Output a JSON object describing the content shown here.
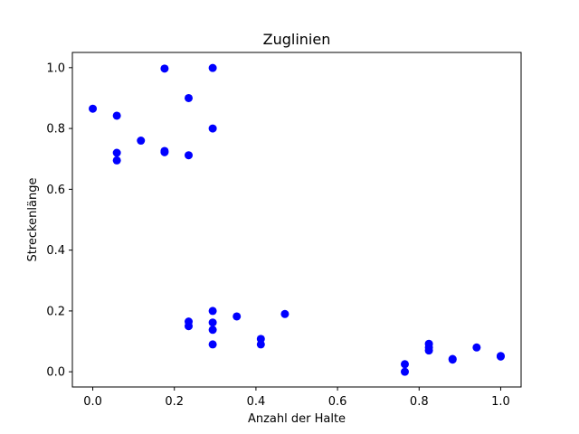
{
  "chart_data": {
    "type": "scatter",
    "title": "Zuglinien",
    "xlabel": "Anzahl der Halte",
    "ylabel": "Streckenlänge",
    "xlim": [
      -0.05,
      1.05
    ],
    "ylim": [
      -0.05,
      1.05
    ],
    "xticks": [
      0.0,
      0.2,
      0.4,
      0.6,
      0.8,
      1.0
    ],
    "yticks": [
      0.0,
      0.2,
      0.4,
      0.6,
      0.8,
      1.0
    ],
    "xtick_labels": [
      "0.0",
      "0.2",
      "0.4",
      "0.6",
      "0.8",
      "1.0"
    ],
    "ytick_labels": [
      "0.0",
      "0.2",
      "0.4",
      "0.6",
      "0.8",
      "1.0"
    ],
    "grid": false,
    "marker_color": "#0000ff",
    "series": [
      {
        "points": [
          [
            0.0,
            0.865
          ],
          [
            0.059,
            0.842
          ],
          [
            0.059,
            0.72
          ],
          [
            0.059,
            0.695
          ],
          [
            0.118,
            0.76
          ],
          [
            0.176,
            0.997
          ],
          [
            0.176,
            0.726
          ],
          [
            0.176,
            0.722
          ],
          [
            0.235,
            0.9
          ],
          [
            0.235,
            0.712
          ],
          [
            0.294,
            0.999
          ],
          [
            0.294,
            0.8
          ],
          [
            0.235,
            0.165
          ],
          [
            0.235,
            0.15
          ],
          [
            0.294,
            0.2
          ],
          [
            0.294,
            0.162
          ],
          [
            0.294,
            0.138
          ],
          [
            0.294,
            0.09
          ],
          [
            0.353,
            0.182
          ],
          [
            0.412,
            0.108
          ],
          [
            0.412,
            0.09
          ],
          [
            0.471,
            0.19
          ],
          [
            0.765,
            0.025
          ],
          [
            0.765,
            0.0
          ],
          [
            0.824,
            0.092
          ],
          [
            0.824,
            0.08
          ],
          [
            0.824,
            0.07
          ],
          [
            0.882,
            0.042
          ],
          [
            0.882,
            0.04
          ],
          [
            0.941,
            0.08
          ],
          [
            1.0,
            0.052
          ],
          [
            1.0,
            0.05
          ]
        ]
      }
    ]
  }
}
